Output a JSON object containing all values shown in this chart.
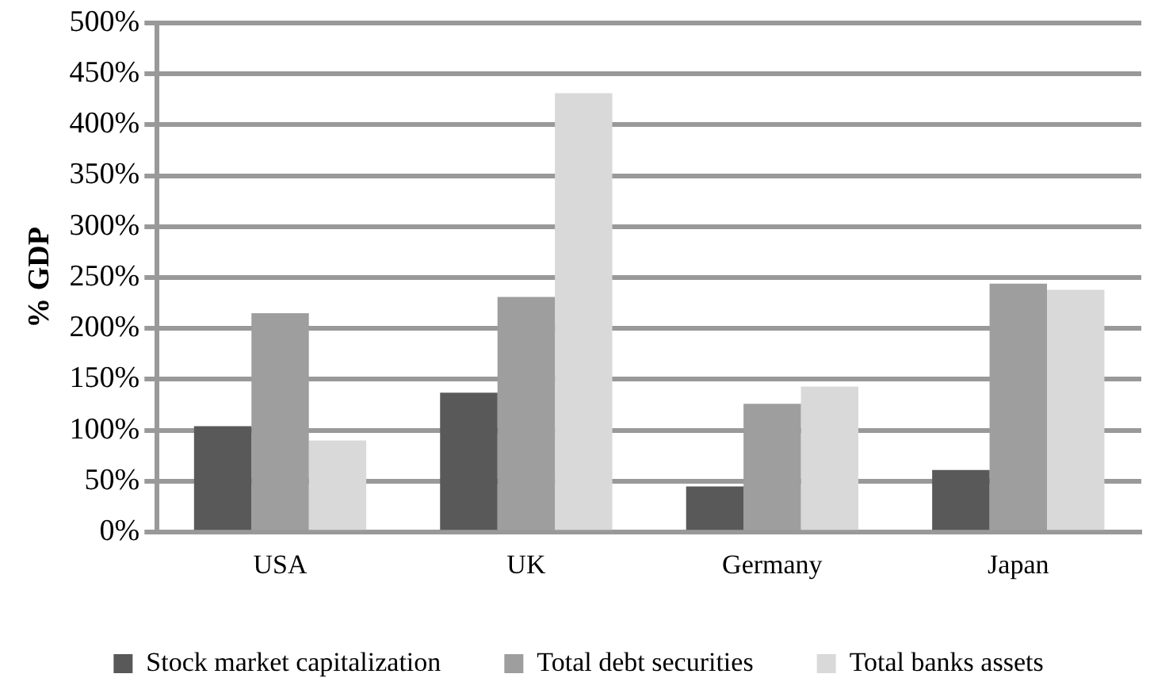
{
  "chart_data": {
    "type": "bar",
    "ylabel": "% GDP",
    "categories": [
      "USA",
      "UK",
      "Germany",
      "Japan"
    ],
    "series": [
      {
        "name": "Stock market capitalization",
        "color": "#595959",
        "values": [
          104,
          137,
          45,
          61
        ]
      },
      {
        "name": "Total debt securities",
        "color": "#9e9e9e",
        "values": [
          215,
          231,
          126,
          244
        ]
      },
      {
        "name": "Total banks assets",
        "color": "#d9d9d9",
        "values": [
          90,
          431,
          143,
          238
        ]
      }
    ],
    "ylim": [
      0,
      500
    ],
    "yticks": [
      {
        "value": 0,
        "label": "0%"
      },
      {
        "value": 50,
        "label": "50%"
      },
      {
        "value": 100,
        "label": "100%"
      },
      {
        "value": 150,
        "label": "150%"
      },
      {
        "value": 200,
        "label": "200%"
      },
      {
        "value": 250,
        "label": "250%"
      },
      {
        "value": 300,
        "label": "300%"
      },
      {
        "value": 350,
        "label": "350%"
      },
      {
        "value": 400,
        "label": "400%"
      },
      {
        "value": 450,
        "label": "450%"
      },
      {
        "value": 500,
        "label": "500%"
      }
    ],
    "grid": "y",
    "legend": "bottom"
  }
}
